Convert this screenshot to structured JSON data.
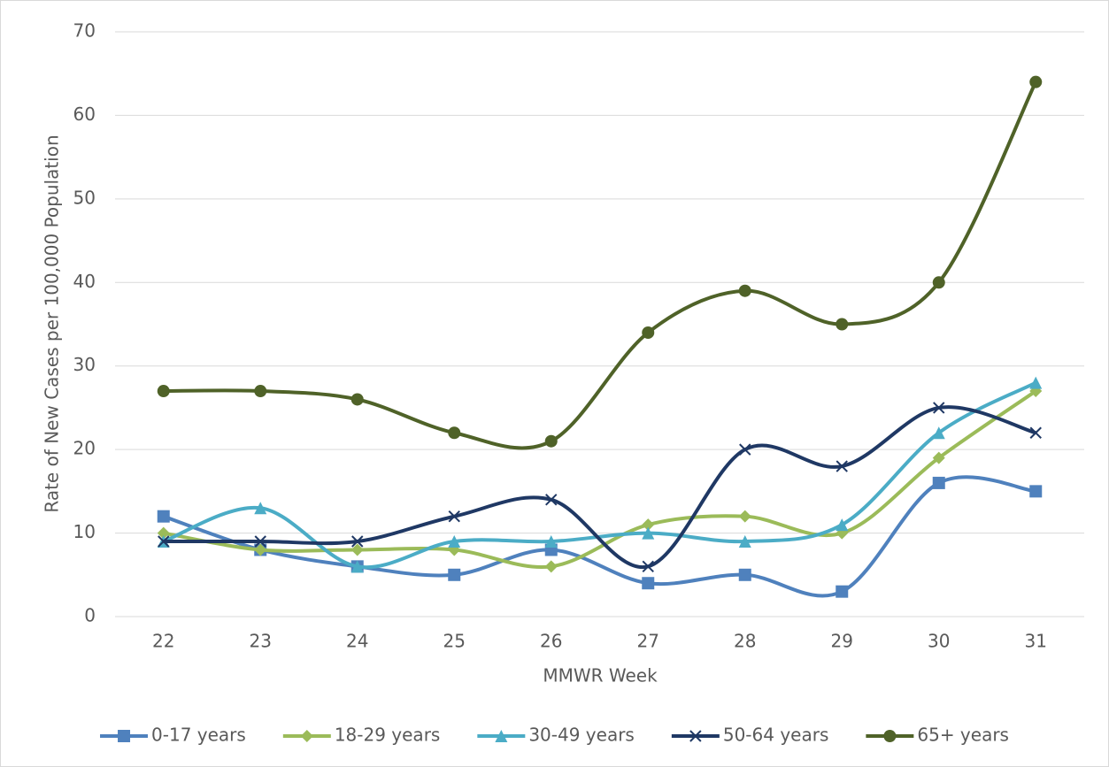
{
  "chart_data": {
    "type": "line",
    "x_label": "MMWR Week",
    "y_label": "Rate of New Cases per 100,000 Population",
    "categories": [
      22,
      23,
      24,
      25,
      26,
      27,
      28,
      29,
      30,
      31
    ],
    "series": [
      {
        "name": "0-17 years",
        "color": "#4f81bd",
        "marker": "square",
        "values": [
          12,
          8,
          6,
          5,
          8,
          4,
          5,
          3,
          16,
          15
        ]
      },
      {
        "name": "18-29 years",
        "color": "#9bbb59",
        "marker": "diamond",
        "values": [
          10,
          8,
          8,
          8,
          6,
          11,
          12,
          10,
          19,
          27
        ]
      },
      {
        "name": "30-49 years",
        "color": "#4bacc6",
        "marker": "triangle",
        "values": [
          9,
          13,
          6,
          9,
          9,
          10,
          9,
          11,
          22,
          28
        ]
      },
      {
        "name": "50-64 years",
        "color": "#1f3864",
        "marker": "x",
        "values": [
          9,
          9,
          9,
          12,
          14,
          6,
          20,
          18,
          25,
          22
        ]
      },
      {
        "name": "65+ years",
        "color": "#4f6228",
        "marker": "circle",
        "values": [
          27,
          27,
          26,
          22,
          21,
          34,
          39,
          35,
          40,
          64
        ]
      }
    ],
    "ylim": [
      0,
      70
    ],
    "yticks": [
      0,
      10,
      20,
      30,
      40,
      50,
      60,
      70
    ],
    "grid": true,
    "smooth": true,
    "legend": "bottom"
  }
}
